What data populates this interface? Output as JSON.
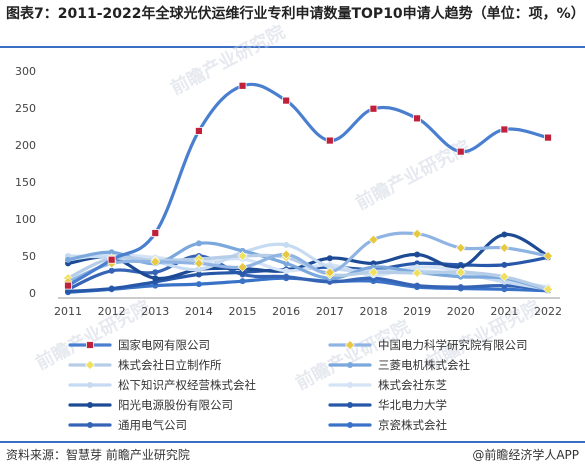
{
  "title": "图表7：2011-2022年全球光伏运维行业专利申请数量TOP10申请人趋势（单位：项，%）",
  "source": "资料来源：智慧芽 前瞻产业研究院",
  "brand": "@前瞻经济学人APP",
  "watermark": "前瞻产业研究院",
  "chart_data": {
    "type": "line",
    "x": [
      2011,
      2012,
      2013,
      2014,
      2015,
      2016,
      2017,
      2018,
      2019,
      2020,
      2021,
      2022
    ],
    "ylim": [
      0,
      300
    ],
    "yticks": [
      0,
      50,
      100,
      150,
      200,
      250,
      300
    ],
    "grid": false,
    "legend": "bottom",
    "series": [
      {
        "name": "国家电网有限公司",
        "color": "#4a7fd0",
        "marker": "square",
        "marker_color": "#c0203a",
        "values": [
          10,
          45,
          81,
          219,
          280,
          260,
          206,
          249,
          236,
          191,
          221,
          210
        ]
      },
      {
        "name": "中国电力科学研究院有限公司",
        "color": "#8fb4e3",
        "marker": "diamond",
        "marker_color": "#e8c840",
        "values": [
          15,
          40,
          42,
          40,
          35,
          52,
          28,
          72,
          80,
          61,
          61,
          50
        ]
      },
      {
        "name": "株式会社日立制作所",
        "color": "#b6cde8",
        "marker": "diamond",
        "marker_color": "#f0e060",
        "values": [
          20,
          47,
          44,
          46,
          50,
          48,
          25,
          28,
          27,
          28,
          22,
          5
        ]
      },
      {
        "name": "三菱电机株式会社",
        "color": "#7aa8dc",
        "marker": "circle",
        "marker_color": "#7aa8dc",
        "values": [
          45,
          55,
          40,
          67,
          57,
          40,
          20,
          35,
          28,
          22,
          20,
          4
        ]
      },
      {
        "name": "松下知识产权经营株式会社",
        "color": "#c6dbf2",
        "marker": "circle",
        "marker_color": "#c6dbf2",
        "values": [
          50,
          48,
          42,
          32,
          55,
          65,
          35,
          30,
          30,
          26,
          15,
          5
        ]
      },
      {
        "name": "株式会社东芝",
        "color": "#d4e3f5",
        "marker": "circle",
        "marker_color": "#d4e3f5",
        "values": [
          45,
          52,
          48,
          42,
          46,
          30,
          38,
          24,
          35,
          30,
          18,
          8
        ]
      },
      {
        "name": "阳光电源股份有限公司",
        "color": "#1d4a95",
        "marker": "circle",
        "marker_color": "#1d4a95",
        "values": [
          40,
          48,
          20,
          32,
          33,
          30,
          47,
          40,
          52,
          35,
          79,
          50
        ]
      },
      {
        "name": "华北电力大学",
        "color": "#2657a8",
        "marker": "circle",
        "marker_color": "#2657a8",
        "values": [
          2,
          6,
          15,
          25,
          28,
          32,
          35,
          32,
          40,
          38,
          38,
          48
        ]
      },
      {
        "name": "通用电气公司",
        "color": "#3563b5",
        "marker": "circle",
        "marker_color": "#3563b5",
        "values": [
          5,
          30,
          28,
          50,
          25,
          22,
          15,
          20,
          10,
          8,
          10,
          5
        ]
      },
      {
        "name": "京瓷株式会社",
        "color": "#3a72c8",
        "marker": "circle",
        "marker_color": "#3a72c8",
        "values": [
          1,
          5,
          10,
          12,
          16,
          20,
          16,
          16,
          8,
          6,
          5,
          3
        ]
      }
    ]
  }
}
